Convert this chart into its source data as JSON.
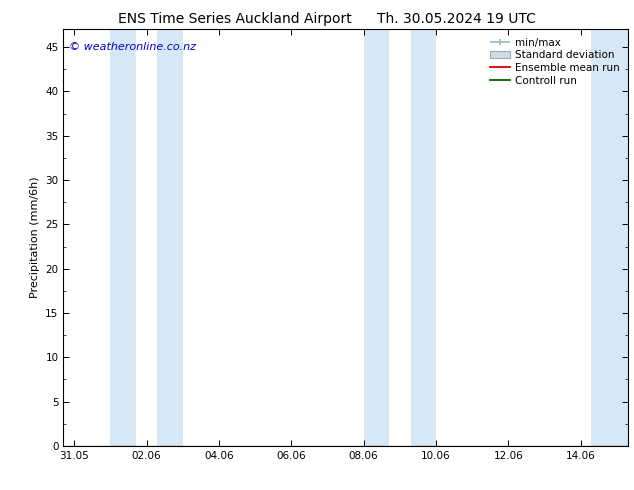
{
  "title_left": "ENS Time Series Auckland Airport",
  "title_right": "Th. 30.05.2024 19 UTC",
  "ylabel": "Precipitation (mm/6h)",
  "ylim": [
    0,
    47
  ],
  "yticks": [
    0,
    5,
    10,
    15,
    20,
    25,
    30,
    35,
    40,
    45
  ],
  "xtick_labels": [
    "31.05",
    "02.06",
    "04.06",
    "06.06",
    "08.06",
    "10.06",
    "12.06",
    "14.06"
  ],
  "xtick_positions": [
    0,
    2,
    4,
    6,
    8,
    10,
    12,
    14
  ],
  "xlim": [
    -0.3,
    15.3
  ],
  "shaded_bands": [
    [
      1.0,
      1.7
    ],
    [
      2.3,
      3.0
    ],
    [
      8.0,
      8.7
    ],
    [
      9.3,
      10.0
    ],
    [
      14.3,
      15.3
    ]
  ],
  "shaded_color": "#d6e8f5",
  "background_color": "#ffffff",
  "plot_bg_color": "#ffffff",
  "watermark": "© weatheronline.co.nz",
  "watermark_color": "#0000cc",
  "watermark_fontsize": 8,
  "title_fontsize": 10,
  "ylabel_fontsize": 8,
  "tick_fontsize": 7.5,
  "legend_fontsize": 7.5
}
